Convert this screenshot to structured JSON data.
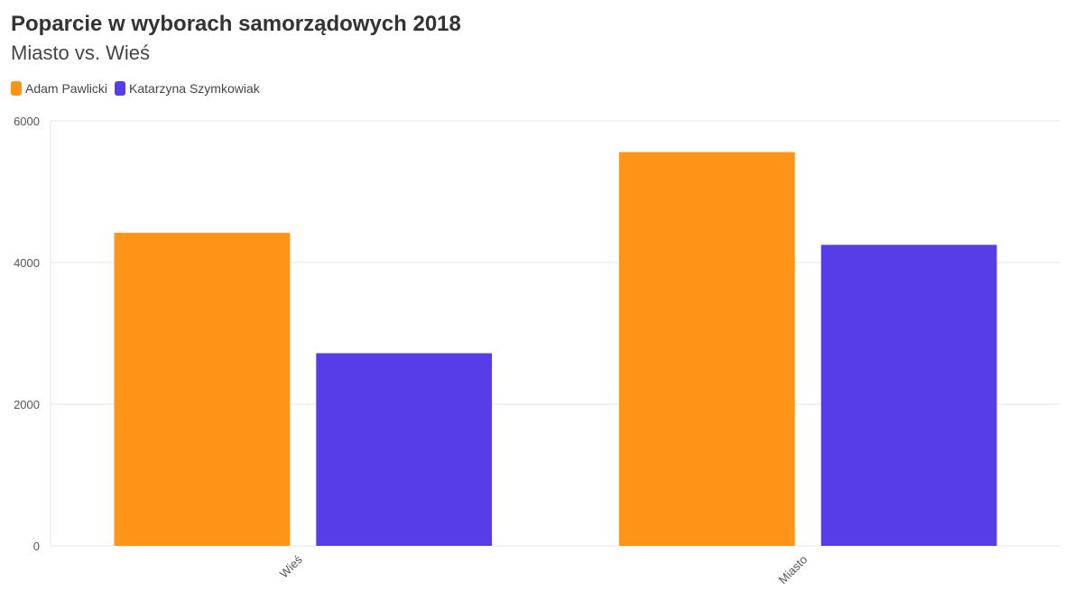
{
  "chart_data": {
    "type": "bar",
    "title": "Poparcie w wyborach samorządowych 2018",
    "subtitle": "Miasto vs. Wieś",
    "categories": [
      "Wieś",
      "Miasto"
    ],
    "series": [
      {
        "name": "Adam Pawlicki",
        "color": "#ff9419",
        "values": [
          4420,
          5560
        ]
      },
      {
        "name": "Katarzyna Szymkowiak",
        "color": "#553ee8",
        "values": [
          2720,
          4250
        ]
      }
    ],
    "ylim": [
      0,
      6000
    ],
    "yticks": [
      "0",
      "2000",
      "4000",
      "6000"
    ],
    "grid": true,
    "legend": "top-left"
  }
}
